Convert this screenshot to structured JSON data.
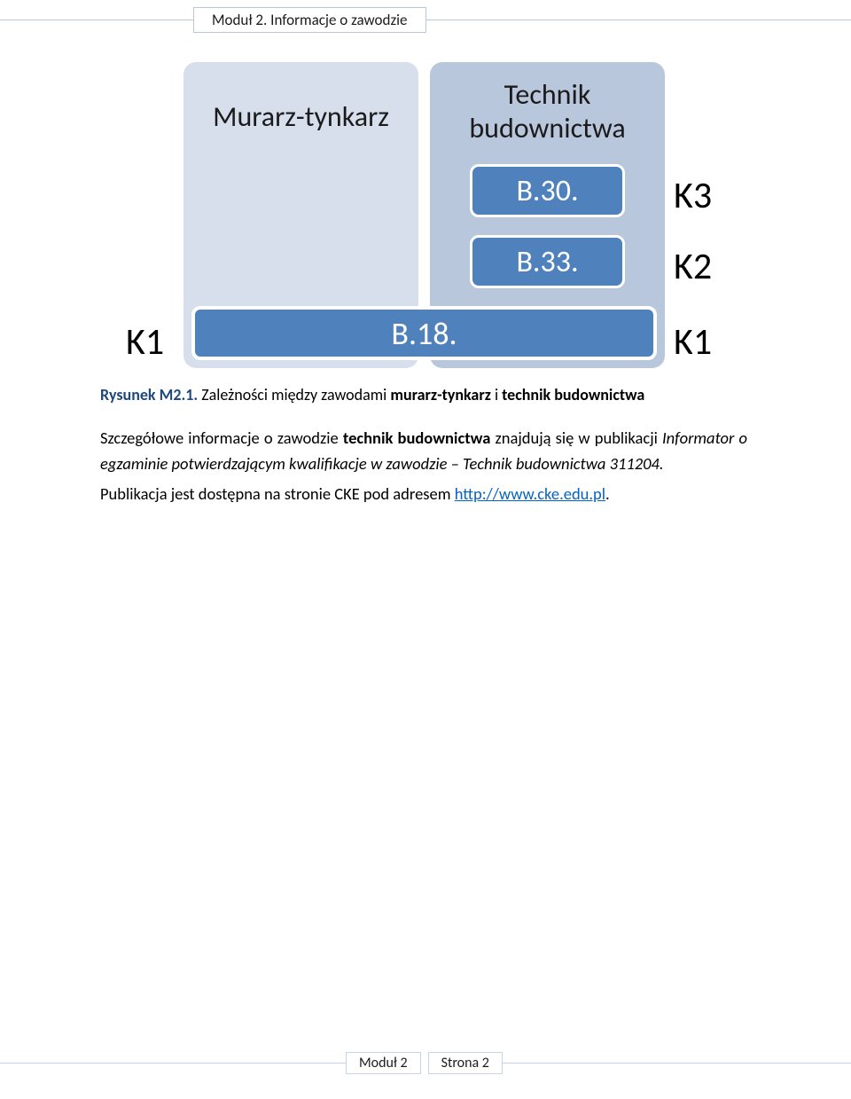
{
  "colors": {
    "text": "#1b1b1b",
    "accent_border": "#b9c7dd",
    "box_bg_light": "#d7dfec",
    "box_bg_mid": "#b9c7dd",
    "pill_bg": "#4f81bd",
    "pill_text": "#ffffff",
    "caption_lead": "#1f497d",
    "link": "#0563c1",
    "footer_border": "#c7d3e6"
  },
  "header": {
    "title": "Moduł 2. Informacje o zawodzie"
  },
  "diagram": {
    "murarz_label": "Murarz-tynkarz",
    "technik_label_line1": "Technik",
    "technik_label_line2": "budownictwa",
    "b30": "B.30.",
    "b33": "B.33.",
    "b18": "B.18.",
    "k1_left": "K1",
    "k3": "K3",
    "k2": "K2",
    "k1_right": "K1"
  },
  "caption": {
    "lead": "Rysunek M2.1.",
    "rest_pre": " Zależności między zawodami ",
    "bold1": "murarz-tynkarz",
    "mid": " i ",
    "bold2": "technik budownictwa"
  },
  "body": {
    "p1_pre": "Szczegółowe informacje o zawodzie ",
    "p1_bold": "technik budownictwa",
    "p1_mid": " znajdują się w publikacji ",
    "p1_ital": "Informator o egzaminie potwierdzającym kwalifikacje w zawodzie – Technik budownictwa 311204.",
    "p2_pre": "Publikacja jest dostępna na stronie CKE pod adresem ",
    "p2_link": "http://www.cke.edu.pl",
    "p2_post": "."
  },
  "footer": {
    "module": "Moduł 2",
    "page": "Strona 2"
  }
}
